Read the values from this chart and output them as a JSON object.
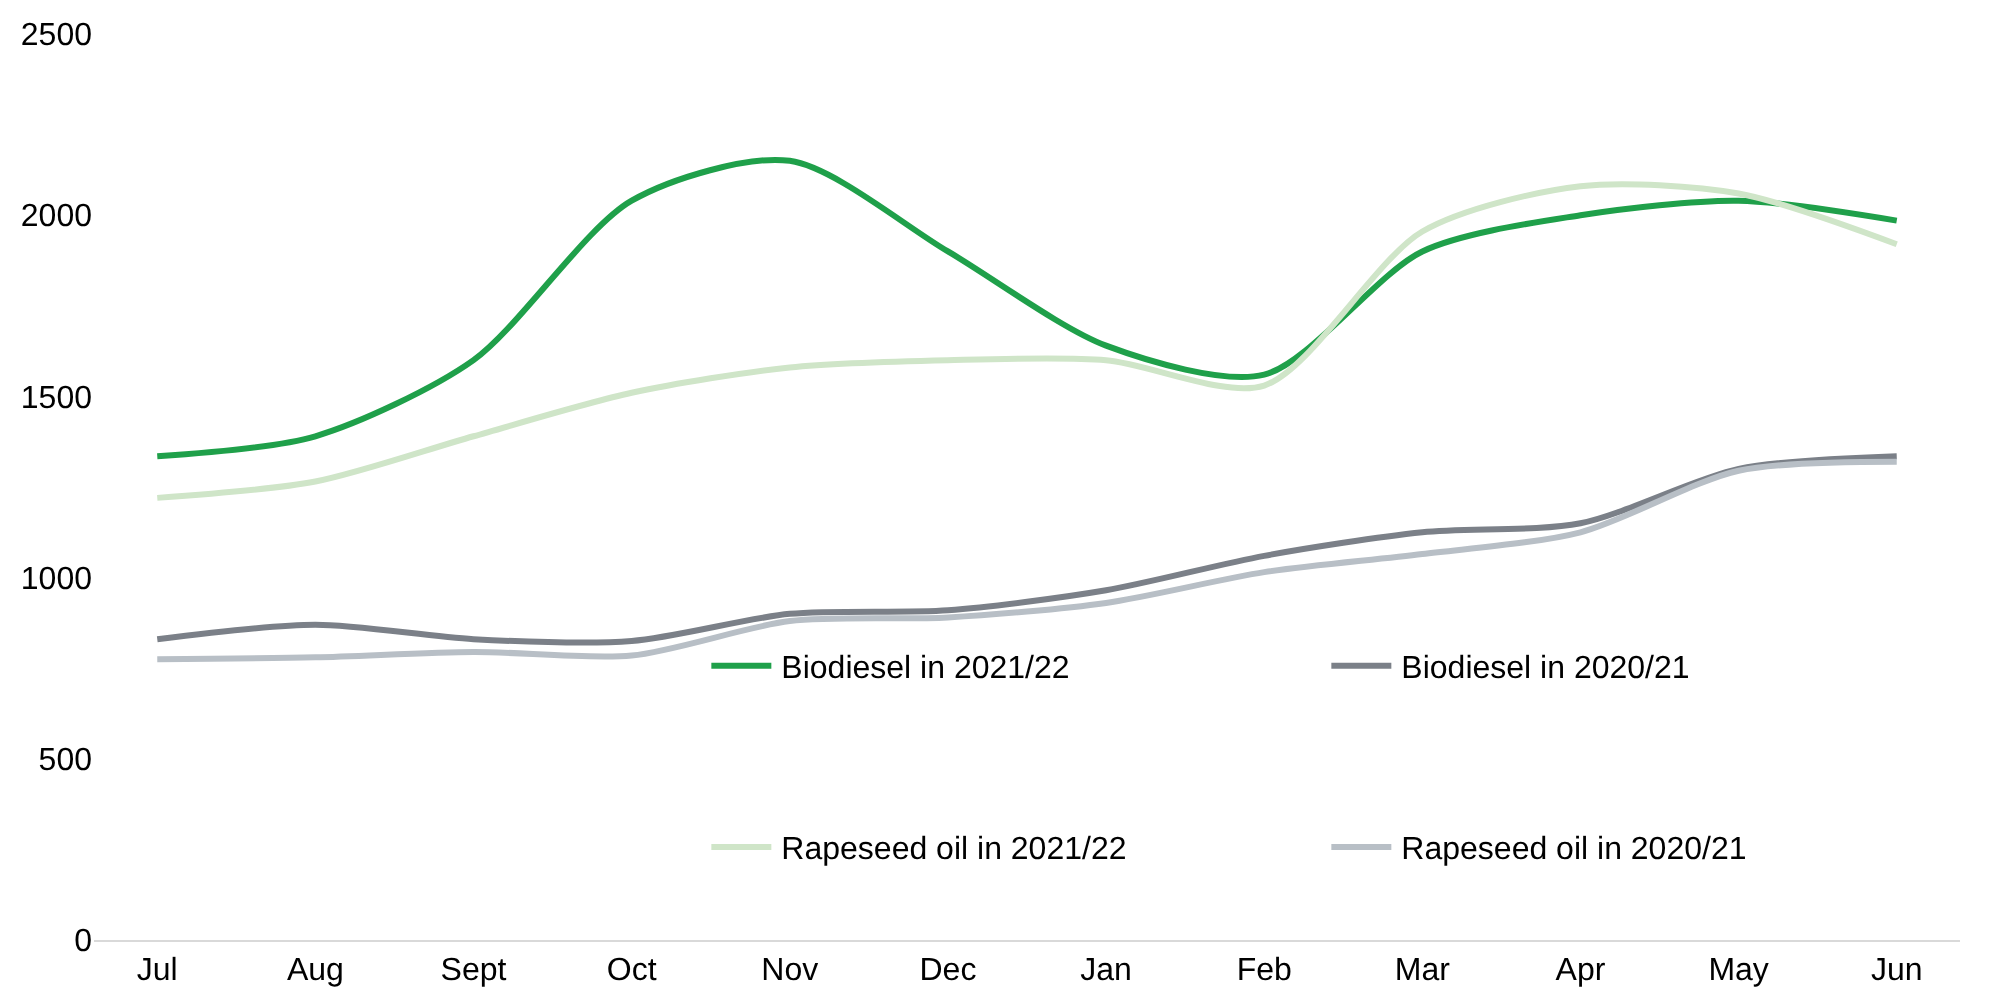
{
  "chart_data": {
    "type": "line",
    "categories": [
      "Jul",
      "Aug",
      "Sept",
      "Oct",
      "Nov",
      "Dec",
      "Jan",
      "Feb",
      "Mar",
      "Apr",
      "May",
      "Jun"
    ],
    "series": [
      {
        "name": "Biodiesel in 2021/22",
        "color": "#1fa04a",
        "values": [
          1335,
          1390,
          1600,
          2040,
          2150,
          1900,
          1640,
          1560,
          1900,
          2000,
          2040,
          1985
        ]
      },
      {
        "name": "Biodiesel in 2020/21",
        "color": "#7b8088",
        "values": [
          830,
          870,
          830,
          825,
          900,
          910,
          965,
          1060,
          1125,
          1150,
          1300,
          1335
        ]
      },
      {
        "name": "Rapeseed oil in 2021/22",
        "color": "#cfe5c8",
        "values": [
          1220,
          1265,
          1390,
          1510,
          1580,
          1600,
          1600,
          1530,
          1955,
          2080,
          2060,
          1920
        ]
      },
      {
        "name": "Rapeseed oil in 2020/21",
        "color": "#b8bfc6",
        "values": [
          775,
          780,
          795,
          785,
          880,
          890,
          930,
          1015,
          1065,
          1125,
          1295,
          1320
        ]
      }
    ],
    "ylim": [
      0,
      2500
    ],
    "yticks": [
      0,
      500,
      1000,
      1500,
      2000,
      2500
    ],
    "legend": "bottom right",
    "marker": "none",
    "line_style": "solid"
  }
}
